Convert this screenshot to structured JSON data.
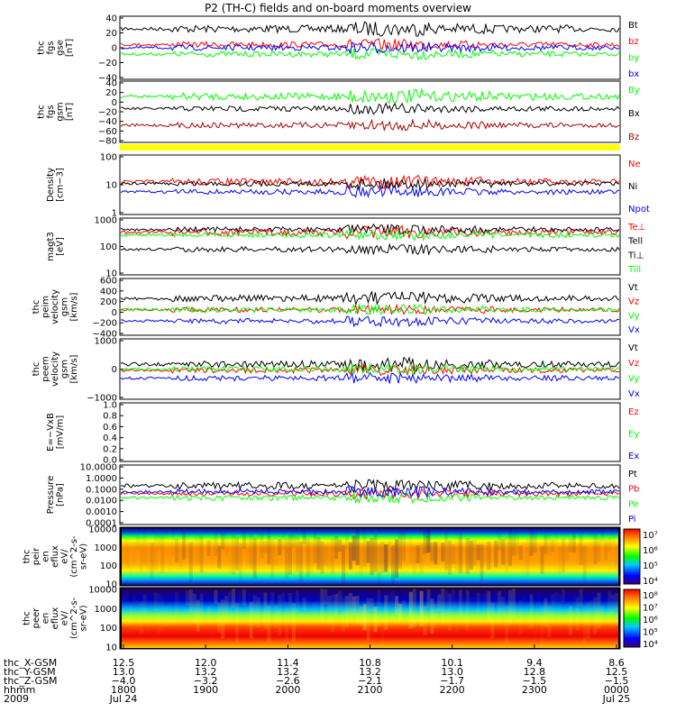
{
  "title": "P2 (TH-C) fields and on-board moments overview",
  "colors": {
    "black": "#000000",
    "red": "#ff0000",
    "green": "#00ff00",
    "blue": "#0000ff",
    "darkred": "#aa0000",
    "yellow": "#ffff00"
  },
  "chart_data": [
    {
      "type": "line",
      "name": "fgs_gse",
      "ylabel": [
        "thc",
        "fgs",
        "gse",
        "[nT]"
      ],
      "ylim": [
        -40,
        40
      ],
      "yticks": [
        "40",
        "20",
        "0",
        "−20",
        "−40"
      ],
      "series": [
        {
          "name": "Bt",
          "color": "#000000"
        },
        {
          "name": "bz",
          "color": "#ff0000"
        },
        {
          "name": "by",
          "color": "#00ff00"
        },
        {
          "name": "bx",
          "color": "#0000ff"
        }
      ]
    },
    {
      "type": "line",
      "name": "fgs_gsm",
      "ylabel": [
        "thc",
        "fgs",
        "gsm",
        "[nT]"
      ],
      "ylim": [
        -80,
        40
      ],
      "yticks": [
        "40",
        "20",
        "0",
        "−20",
        "−40",
        "−60",
        "−80"
      ],
      "series": [
        {
          "name": "By",
          "color": "#00ff00"
        },
        {
          "name": "Bx",
          "color": "#000000"
        },
        {
          "name": "Bz",
          "color": "#aa0000"
        }
      ]
    },
    {
      "type": "bar",
      "name": "flag_bar",
      "color": "#ffff00"
    },
    {
      "type": "line",
      "name": "density",
      "ylabel": [
        "Density",
        "[cm−3]"
      ],
      "ylim": [
        1,
        100
      ],
      "log": true,
      "yticks": [
        "100",
        "10",
        "1"
      ],
      "series": [
        {
          "name": "Ne",
          "color": "#ff0000"
        },
        {
          "name": "Ni",
          "color": "#000000"
        },
        {
          "name": "Npot",
          "color": "#0000ff"
        }
      ]
    },
    {
      "type": "line",
      "name": "temperature",
      "ylabel": [
        "magt3",
        "[eV]"
      ],
      "ylim": [
        10,
        10000
      ],
      "log": true,
      "yticks": [
        "1000",
        "100",
        "10"
      ],
      "series": [
        {
          "name": "Te⊥",
          "color": "#ff0000"
        },
        {
          "name": "Tell",
          "color": "#000000"
        },
        {
          "name": "Ti⊥",
          "color": "#000000"
        },
        {
          "name": "Till",
          "color": "#00ff00"
        }
      ]
    },
    {
      "type": "line",
      "name": "peim_velocity",
      "ylabel": [
        "thc",
        "peim",
        "velocity",
        "gsm",
        "[km/s]"
      ],
      "ylim": [
        -400,
        600
      ],
      "yticks": [
        "600",
        "400",
        "200",
        "0",
        "−200",
        "−400"
      ],
      "series": [
        {
          "name": "Vt",
          "color": "#000000"
        },
        {
          "name": "Vz",
          "color": "#ff0000"
        },
        {
          "name": "Vy",
          "color": "#00ff00"
        },
        {
          "name": "Vx",
          "color": "#0000ff"
        }
      ]
    },
    {
      "type": "line",
      "name": "peem_velocity",
      "ylabel": [
        "thc",
        "peem",
        "velocity",
        "gsm",
        "[km/s]"
      ],
      "ylim": [
        -1000,
        1000
      ],
      "yticks": [
        "1000",
        "0",
        "−1000"
      ],
      "series": [
        {
          "name": "Vt",
          "color": "#000000"
        },
        {
          "name": "Vz",
          "color": "#ff0000"
        },
        {
          "name": "Vy",
          "color": "#00ff00"
        },
        {
          "name": "Vx",
          "color": "#0000ff"
        }
      ]
    },
    {
      "type": "line",
      "name": "efield",
      "ylabel": [
        "E=−VxB",
        "[mV/m]"
      ],
      "ylim": [
        0.0,
        1.0
      ],
      "yticks": [
        "1.0",
        "0.8",
        "0.6",
        "0.4",
        "0.2",
        "0.0"
      ],
      "series": [
        {
          "name": "Ez",
          "color": "#ff0000"
        },
        {
          "name": "Ey",
          "color": "#00ff00"
        },
        {
          "name": "Ex",
          "color": "#0000ff"
        }
      ]
    },
    {
      "type": "line",
      "name": "pressure",
      "ylabel": [
        "Pressure",
        "[nPa]"
      ],
      "ylim": [
        0.0001,
        10
      ],
      "log": true,
      "yticks": [
        "10.0000",
        "1.0000",
        "0.1000",
        "0.0100",
        "0.0010",
        "0.0001"
      ],
      "series": [
        {
          "name": "Pt",
          "color": "#000000"
        },
        {
          "name": "Pb",
          "color": "#ff0000"
        },
        {
          "name": "Pe",
          "color": "#00ff00"
        },
        {
          "name": "Pi",
          "color": "#0000ff"
        }
      ]
    },
    {
      "type": "heatmap",
      "name": "peir_en_eflux",
      "ylabel": [
        "thc",
        "peir",
        "en",
        "eflux",
        "eV/",
        "(cm^2-s-",
        "sr-eV)"
      ],
      "ylim": [
        10,
        10000
      ],
      "log": true,
      "yticks": [
        "10000",
        "1000",
        "100",
        "10"
      ],
      "colorbar_ticks": [
        "10⁷",
        "10⁶",
        "10⁵",
        "10⁴"
      ]
    },
    {
      "type": "heatmap",
      "name": "peer_en_eflux",
      "ylabel": [
        "thc",
        "peer",
        "en",
        "eflux",
        "eV/",
        "(cm^2-s-",
        "sr-eV)"
      ],
      "ylim": [
        10,
        10000
      ],
      "log": true,
      "yticks": [
        "10000",
        "1000",
        "100",
        "10"
      ],
      "colorbar_ticks": [
        "10⁸",
        "10⁷",
        "10⁶",
        "10⁵",
        "10⁴"
      ]
    }
  ],
  "x_axis": {
    "rows": [
      {
        "label": "thc_X-GSM",
        "values": [
          "12.5",
          "12.0",
          "11.4",
          "10.8",
          "10.1",
          "9.4",
          "8.6"
        ]
      },
      {
        "label": "thc_Y-GSM",
        "values": [
          "13.0",
          "13.2",
          "13.2",
          "13.2",
          "13.0",
          "12.8",
          "12.5"
        ]
      },
      {
        "label": "thc_Z-GSM",
        "values": [
          "−4.0",
          "−3.2",
          "−2.6",
          "−2.1",
          "−1.7",
          "−1.5",
          "−1.5"
        ]
      },
      {
        "label": "hhmm",
        "values": [
          "1800",
          "1900",
          "2000",
          "2100",
          "2200",
          "2300",
          "0000"
        ]
      },
      {
        "label": "2009",
        "values": [
          "Jul 24",
          "",
          "",
          "",
          "",
          "",
          "Jul 25"
        ]
      }
    ]
  }
}
